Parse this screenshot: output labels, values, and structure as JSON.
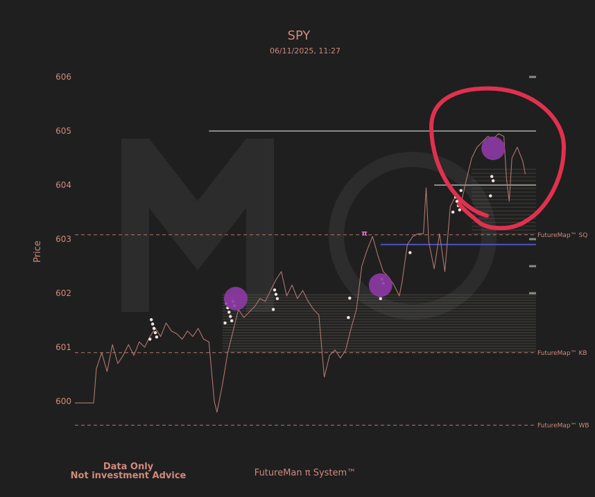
{
  "chart_data": {
    "type": "line",
    "title": "SPY",
    "subtitle": "06/11/2025, 11:27",
    "ylabel": "Price",
    "xlabel": "",
    "ylim": [
      599.56,
      606.3
    ],
    "yticks": [
      "600",
      "601",
      "602",
      "603",
      "604",
      "605",
      "606"
    ],
    "grid": false,
    "legend": "none",
    "colors": {
      "background": "#1f1f1f",
      "text": "#d08a7e",
      "price_line": "#b07870",
      "dashed_levels": "#b87670",
      "gray_levels": "#8a8a8a",
      "blue_level": "#5050c8",
      "highlight_circle": "#8e3aa6",
      "annotation_ring": "#e0314e",
      "markers": "#f2e4e4"
    },
    "series": [
      {
        "points": [
          [
            0,
            599.97
          ],
          [
            7,
            599.97
          ],
          [
            8,
            600.6
          ],
          [
            10,
            600.9
          ],
          [
            12,
            600.55
          ],
          [
            14,
            601.05
          ],
          [
            16,
            600.7
          ],
          [
            18,
            600.85
          ],
          [
            20,
            601.05
          ],
          [
            22,
            600.85
          ],
          [
            24,
            601.1
          ],
          [
            26,
            601.0
          ],
          [
            28,
            601.2
          ],
          [
            30,
            601.35
          ],
          [
            32,
            601.2
          ],
          [
            34,
            601.45
          ],
          [
            36,
            601.3
          ],
          [
            38,
            601.25
          ],
          [
            40,
            601.15
          ],
          [
            42,
            601.3
          ],
          [
            44,
            601.2
          ],
          [
            46,
            601.35
          ],
          [
            48,
            601.15
          ],
          [
            50,
            601.1
          ],
          [
            52,
            600.0
          ],
          [
            53,
            599.8
          ],
          [
            55,
            600.3
          ],
          [
            57,
            600.9
          ],
          [
            59,
            601.3
          ],
          [
            61,
            601.7
          ],
          [
            63,
            601.55
          ],
          [
            65,
            601.65
          ],
          [
            67,
            601.75
          ],
          [
            69,
            601.9
          ],
          [
            71,
            601.85
          ],
          [
            73,
            602.05
          ],
          [
            75,
            602.25
          ],
          [
            77,
            602.4
          ],
          [
            79,
            601.95
          ],
          [
            81,
            602.15
          ],
          [
            83,
            601.9
          ],
          [
            85,
            602.05
          ],
          [
            87,
            601.85
          ],
          [
            89,
            601.7
          ],
          [
            91,
            601.6
          ],
          [
            93,
            600.45
          ],
          [
            95,
            600.85
          ],
          [
            97,
            600.95
          ],
          [
            99,
            600.8
          ],
          [
            101,
            600.95
          ],
          [
            103,
            601.35
          ],
          [
            105,
            601.7
          ],
          [
            107,
            602.5
          ],
          [
            109,
            602.8
          ],
          [
            111,
            603.05
          ],
          [
            113,
            602.7
          ],
          [
            115,
            602.4
          ],
          [
            117,
            602.3
          ],
          [
            119,
            602.15
          ],
          [
            121,
            601.95
          ],
          [
            122,
            602.2
          ],
          [
            124,
            602.9
          ],
          [
            126,
            603.05
          ],
          [
            128,
            603.1
          ],
          [
            129,
            603.1
          ],
          [
            130,
            603.1
          ],
          [
            131,
            603.95
          ],
          [
            132,
            602.95
          ],
          [
            134,
            602.45
          ],
          [
            136,
            603.1
          ],
          [
            138,
            602.4
          ],
          [
            140,
            603.6
          ],
          [
            142,
            603.8
          ],
          [
            144,
            603.65
          ],
          [
            146,
            604.1
          ],
          [
            148,
            604.5
          ],
          [
            150,
            604.7
          ],
          [
            152,
            604.8
          ],
          [
            154,
            604.9
          ],
          [
            156,
            604.85
          ],
          [
            158,
            604.95
          ],
          [
            160,
            604.9
          ],
          [
            161,
            604.1
          ],
          [
            162,
            603.7
          ],
          [
            163,
            604.5
          ],
          [
            165,
            604.7
          ],
          [
            167,
            604.45
          ],
          [
            168,
            604.2
          ]
        ]
      }
    ],
    "levels": [
      {
        "label": "FutureMap™ SQ",
        "price": 603.08,
        "style": "dashed"
      },
      {
        "label": "FutureMap™ KB",
        "price": 600.9,
        "style": "dashed"
      },
      {
        "label": "FutureMap™ WB",
        "price": 599.56,
        "style": "dashed"
      }
    ],
    "horizontal_lines": [
      {
        "price": 605.0,
        "x_start": 50,
        "x_end": 172,
        "color": "#8a8a8a"
      },
      {
        "price": 602.9,
        "x_start": 114,
        "x_end": 172,
        "color": "#5050c8"
      },
      {
        "price": 604.0,
        "x_start": 134,
        "x_end": 172,
        "color": "#8a8a8a"
      }
    ],
    "highlight_points": [
      [
        60,
        601.9
      ],
      [
        114,
        602.15
      ],
      [
        156,
        604.68
      ]
    ],
    "annotations": [
      {
        "text": "π",
        "x": 108,
        "y": 603.1
      }
    ],
    "footer": {
      "disclaimer_line1": "Data Only",
      "disclaimer_line2": "Not investment Advice",
      "brand": "FutureMan π System™"
    }
  }
}
